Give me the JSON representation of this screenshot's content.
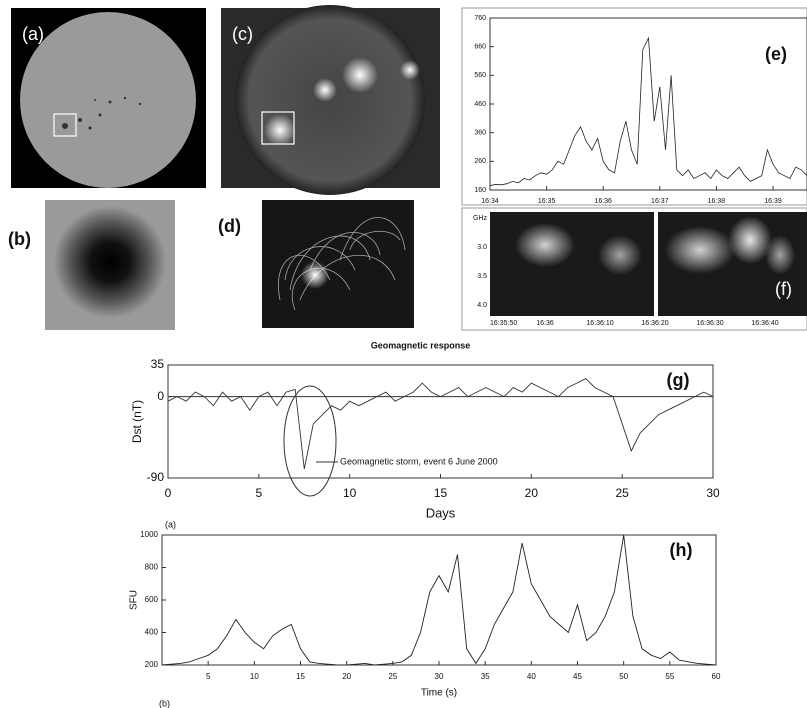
{
  "panel_labels": {
    "a": "(a)",
    "b": "(b)",
    "c": "(c)",
    "d": "(d)",
    "e": "(e)",
    "f": "(f)"
  },
  "spectrogram": {
    "yticks": [
      "GHz",
      "3.0",
      "3.5",
      "4.0"
    ],
    "xticks": [
      "16:35:50",
      "16:36",
      "16:36:10",
      "16:36:20",
      "16:36:30",
      "16:36:40"
    ]
  },
  "chart_data": [
    {
      "type": "line",
      "color": "#222",
      "x": [
        0,
        0.1,
        0.2,
        0.3,
        0.4,
        0.5,
        0.6,
        0.7,
        0.8,
        0.9,
        1,
        1.1,
        1.2,
        1.3,
        1.4,
        1.5,
        1.6,
        1.7,
        1.8,
        1.9,
        2,
        2.1,
        2.2,
        2.3,
        2.4,
        2.5,
        2.6,
        2.7,
        2.8,
        2.9,
        3,
        3.1,
        3.2,
        3.3,
        3.4,
        3.5,
        3.6,
        3.7,
        3.8,
        3.9,
        4,
        4.1,
        4.2,
        4.3,
        4.4,
        4.5,
        4.6,
        4.7,
        4.8,
        4.9,
        5,
        5.1,
        5.2,
        5.3,
        5.4,
        5.5,
        5.6
      ],
      "values": [
        175,
        180,
        178,
        182,
        190,
        185,
        200,
        195,
        210,
        220,
        215,
        230,
        260,
        250,
        300,
        350,
        380,
        330,
        300,
        340,
        260,
        230,
        220,
        330,
        400,
        300,
        250,
        650,
        690,
        400,
        520,
        300,
        560,
        230,
        210,
        230,
        200,
        210,
        220,
        200,
        230,
        210,
        200,
        220,
        240,
        210,
        190,
        200,
        210,
        300,
        250,
        220,
        210,
        200,
        240,
        230,
        210
      ],
      "xlim": [
        0,
        5.6
      ],
      "xticks": [
        {
          "value": 0,
          "label": "16:34"
        },
        {
          "value": 1,
          "label": "16:35"
        },
        {
          "value": 2,
          "label": "16:36"
        },
        {
          "value": 3,
          "label": "16:37"
        },
        {
          "value": 4,
          "label": "16:38"
        },
        {
          "value": 5,
          "label": "16:39"
        }
      ],
      "ylim": [
        160,
        760
      ],
      "yticks": [
        160,
        260,
        360,
        460,
        560,
        660,
        760
      ]
    },
    {
      "type": "line",
      "color": "#333",
      "title": "Geomagnetic response",
      "panel_label": "(g)",
      "sublabel": "(a)",
      "xlabel": "Days",
      "ylabel": "Dst (nT)",
      "annotation": "Geomagnetic storm, event 6 June 2000",
      "zero_line": true,
      "x": [
        0,
        0.5,
        1,
        1.5,
        2,
        2.5,
        3,
        3.5,
        4,
        4.5,
        5,
        5.5,
        6,
        6.5,
        7,
        7.5,
        8,
        8.5,
        9,
        9.5,
        10,
        10.5,
        11,
        11.5,
        12,
        12.5,
        13,
        13.5,
        14,
        14.5,
        15,
        15.5,
        16,
        16.5,
        17,
        17.5,
        18,
        18.5,
        19,
        19.5,
        20,
        20.5,
        21,
        21.5,
        22,
        22.5,
        23,
        23.5,
        24,
        24.5,
        25,
        25.5,
        26,
        26.5,
        27,
        27.5,
        28,
        28.5,
        29,
        29.5,
        30
      ],
      "values": [
        -5,
        0,
        -5,
        5,
        0,
        -10,
        5,
        -5,
        0,
        -15,
        0,
        5,
        -10,
        5,
        8,
        -80,
        -30,
        -20,
        -10,
        -15,
        -5,
        -10,
        -5,
        0,
        5,
        -5,
        0,
        5,
        15,
        5,
        0,
        5,
        10,
        0,
        5,
        10,
        5,
        0,
        10,
        5,
        15,
        10,
        5,
        0,
        10,
        15,
        20,
        10,
        5,
        0,
        -30,
        -60,
        -40,
        -30,
        -20,
        -15,
        -10,
        -5,
        0,
        5,
        0
      ],
      "xlim": [
        0,
        30
      ],
      "xticks": [
        0,
        5,
        10,
        15,
        20,
        25,
        30
      ],
      "ylim": [
        -90,
        35
      ],
      "yticks": [
        -90,
        0,
        35
      ]
    },
    {
      "type": "line",
      "color": "#222",
      "panel_label": "(h)",
      "sublabel": "(b)",
      "xlabel": "Time (s)",
      "ylabel": "SFU",
      "x": [
        0,
        1,
        2,
        3,
        4,
        5,
        6,
        7,
        8,
        9,
        10,
        11,
        12,
        13,
        14,
        15,
        16,
        17,
        18,
        19,
        20,
        21,
        22,
        23,
        24,
        25,
        26,
        27,
        28,
        29,
        30,
        31,
        32,
        33,
        34,
        35,
        36,
        37,
        38,
        39,
        40,
        41,
        42,
        43,
        44,
        45,
        46,
        47,
        48,
        49,
        50,
        51,
        52,
        53,
        54,
        55,
        56,
        57,
        58,
        59,
        60
      ],
      "values": [
        200,
        205,
        210,
        220,
        240,
        260,
        300,
        380,
        480,
        400,
        340,
        300,
        380,
        420,
        450,
        300,
        220,
        210,
        205,
        200,
        200,
        205,
        210,
        200,
        205,
        210,
        220,
        260,
        400,
        650,
        750,
        650,
        880,
        300,
        210,
        300,
        450,
        550,
        650,
        950,
        700,
        600,
        500,
        450,
        400,
        570,
        350,
        400,
        500,
        650,
        1000,
        500,
        300,
        260,
        240,
        280,
        230,
        220,
        210,
        205,
        200
      ],
      "xlim": [
        0,
        60
      ],
      "xticks": [
        5,
        10,
        15,
        20,
        25,
        30,
        35,
        40,
        45,
        50,
        55,
        60
      ],
      "ylim": [
        200,
        1000
      ],
      "yticks": [
        200,
        400,
        600,
        800,
        1000
      ]
    }
  ]
}
